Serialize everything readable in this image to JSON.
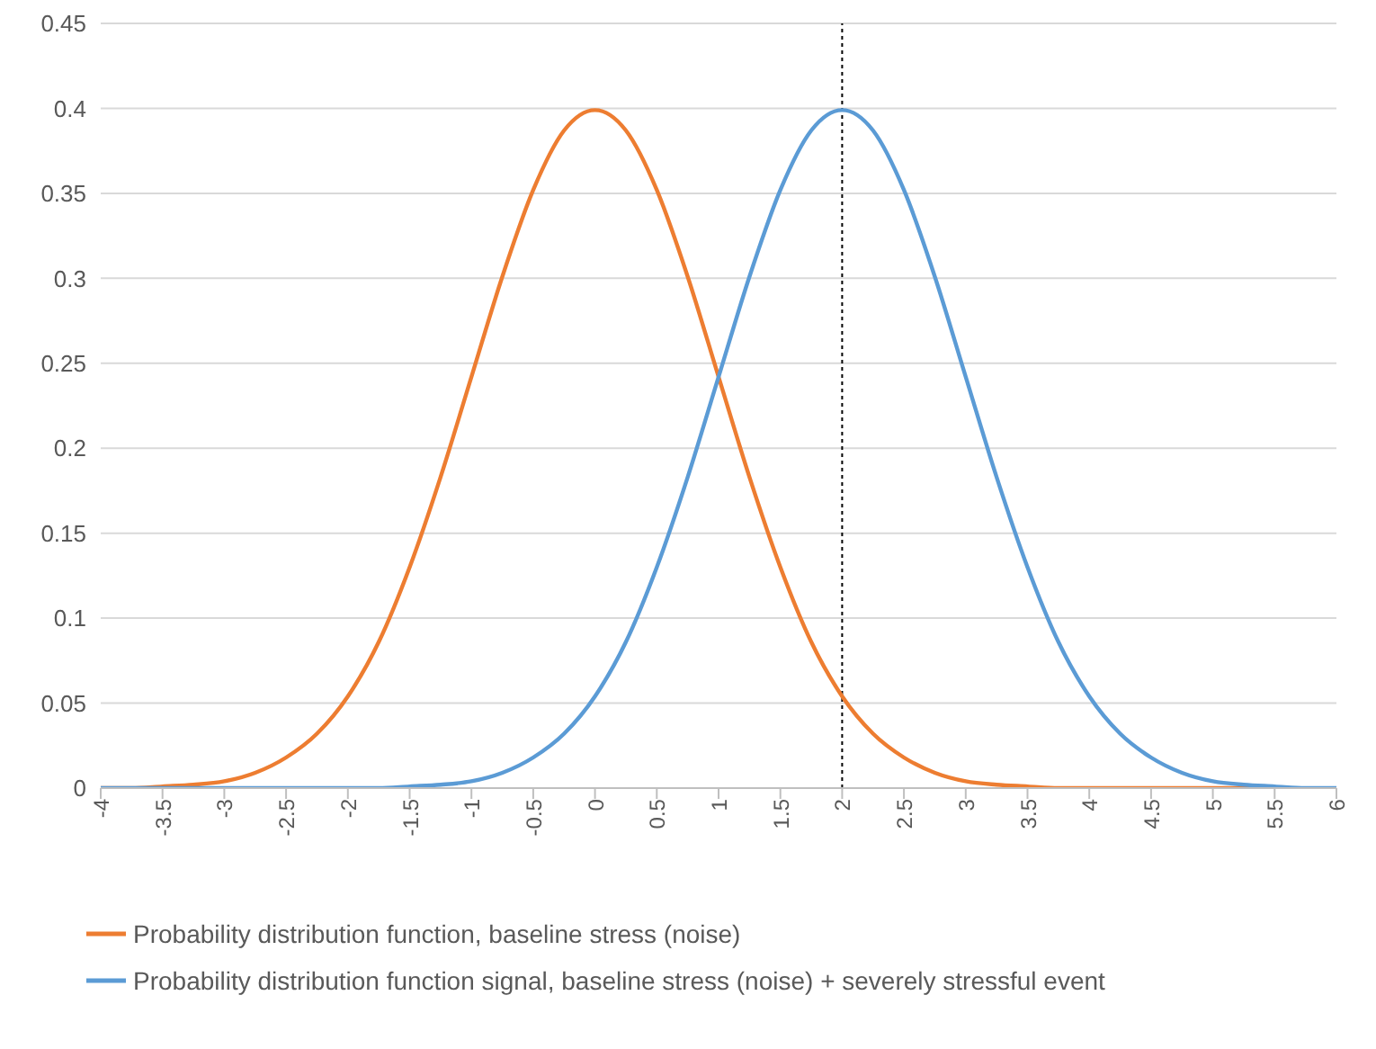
{
  "chart_data": {
    "type": "line",
    "x": [
      -4,
      -3.75,
      -3.5,
      -3.25,
      -3,
      -2.75,
      -2.5,
      -2.25,
      -2,
      -1.75,
      -1.5,
      -1.25,
      -1,
      -0.75,
      -0.5,
      -0.25,
      0,
      0.25,
      0.5,
      0.75,
      1,
      1.25,
      1.5,
      1.75,
      2,
      2.25,
      2.5,
      2.75,
      3,
      3.25,
      3.5,
      3.75,
      4,
      4.25,
      4.5,
      4.75,
      5,
      5.25,
      5.5,
      5.75,
      6
    ],
    "series": [
      {
        "name": "Probability distribution function, baseline stress (noise)",
        "color": "#ed7d31",
        "values": [
          0,
          0,
          0.001,
          0.002,
          0.004,
          0.009,
          0.018,
          0.032,
          0.054,
          0.086,
          0.13,
          0.183,
          0.242,
          0.301,
          0.352,
          0.387,
          0.399,
          0.387,
          0.352,
          0.301,
          0.242,
          0.183,
          0.13,
          0.086,
          0.054,
          0.032,
          0.018,
          0.009,
          0.004,
          0.002,
          0.001,
          0,
          0,
          0,
          0,
          0,
          0,
          0,
          0,
          null,
          null
        ]
      },
      {
        "name": "Probability distribution function signal, baseline stress (noise) + severely stressful event",
        "color": "#5b9bd5",
        "values": [
          0,
          0,
          0,
          0,
          0,
          0,
          0,
          0,
          0,
          0,
          0.001,
          0.002,
          0.004,
          0.009,
          0.018,
          0.032,
          0.054,
          0.086,
          0.13,
          0.183,
          0.242,
          0.301,
          0.352,
          0.387,
          0.399,
          0.387,
          0.352,
          0.301,
          0.242,
          0.183,
          0.13,
          0.086,
          0.054,
          0.032,
          0.018,
          0.009,
          0.004,
          0.002,
          0.001,
          0,
          0
        ]
      }
    ],
    "xlim": [
      -4,
      6
    ],
    "xticks": [
      -4,
      -3.5,
      -3,
      -2.5,
      -2,
      -1.5,
      -1,
      -0.5,
      0,
      0.5,
      1,
      1.5,
      2,
      2.5,
      3,
      3.5,
      4,
      4.5,
      5,
      5.5,
      6
    ],
    "ylim": [
      0,
      0.45
    ],
    "yticks": [
      0,
      0.05,
      0.1,
      0.15,
      0.2,
      0.25,
      0.3,
      0.35,
      0.4,
      0.45
    ],
    "grid": "y",
    "legend": "bottom",
    "marker": "none",
    "line_style": "solid",
    "ref_lines": [
      {
        "axis": "x",
        "value": 2,
        "color": "#000000",
        "line_style": "dotted"
      }
    ]
  }
}
